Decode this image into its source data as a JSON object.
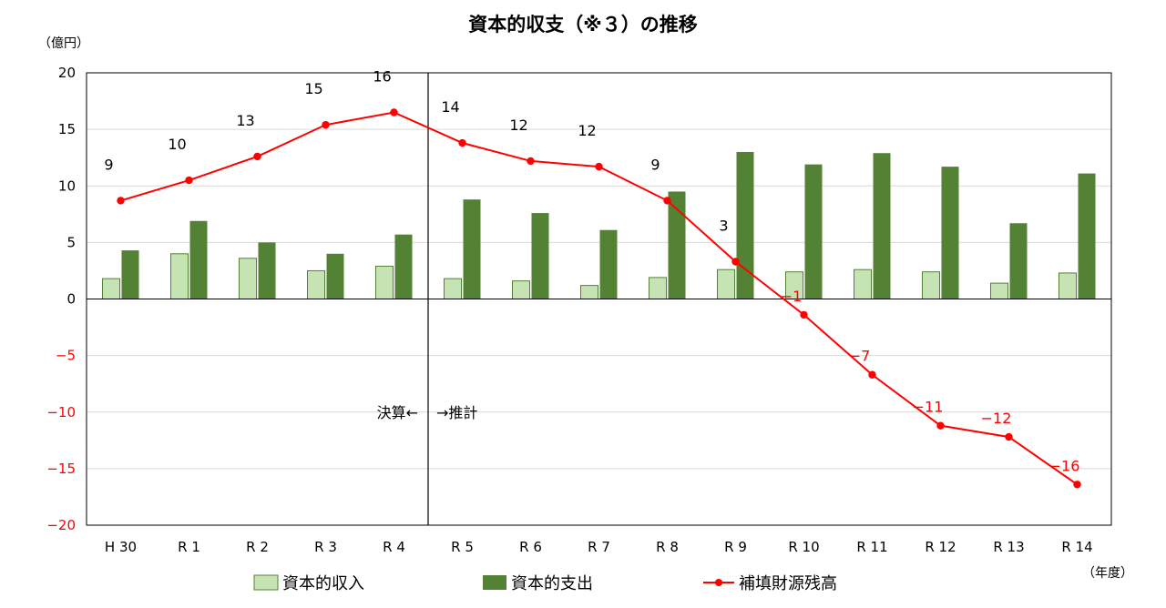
{
  "chart_data": {
    "type": "bar",
    "title": "資本的収支（※３）の推移",
    "y_unit_label": "（億円）",
    "x_unit_label": "（年度）",
    "categories": [
      "H 30",
      "R 1",
      "R 2",
      "R 3",
      "R 4",
      "R 5",
      "R 6",
      "R 7",
      "R 8",
      "R 9",
      "R 10",
      "R 11",
      "R 12",
      "R 13",
      "R 14"
    ],
    "ylim": [
      -20,
      20
    ],
    "yticks": [
      20,
      15,
      10,
      5,
      0,
      -5,
      -10,
      -15,
      -20
    ],
    "grid": true,
    "legend_position": "bottom",
    "series": [
      {
        "name": "資本的収入",
        "type": "bar",
        "color": "#c6e3b4",
        "values": [
          1.8,
          4.0,
          3.6,
          2.5,
          2.9,
          1.8,
          1.6,
          1.2,
          1.9,
          2.6,
          2.4,
          2.6,
          2.4,
          1.4,
          2.3
        ]
      },
      {
        "name": "資本的支出",
        "type": "bar",
        "color": "#548235",
        "values": [
          4.3,
          6.9,
          5.0,
          4.0,
          5.7,
          8.8,
          7.6,
          6.1,
          9.5,
          13.0,
          11.9,
          12.9,
          11.7,
          6.7,
          11.1
        ]
      },
      {
        "name": "補填財源残高",
        "type": "line",
        "color": "#ff0000",
        "values": [
          8.7,
          10.5,
          12.6,
          15.4,
          16.5,
          13.8,
          12.2,
          11.7,
          8.7,
          3.3,
          -1.4,
          -6.7,
          -11.2,
          -12.2,
          -16.4
        ],
        "data_labels": [
          "9",
          "10",
          "13",
          "15",
          "16",
          "14",
          "12",
          "12",
          "9",
          "3",
          "−1",
          "−7",
          "−11",
          "−12",
          "−16"
        ]
      }
    ],
    "annotations": {
      "actual_label": "決算←",
      "forecast_label": "→推計",
      "divider_after_index": 4
    }
  }
}
